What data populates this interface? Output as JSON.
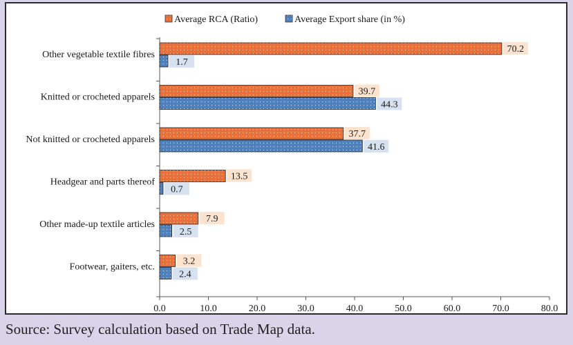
{
  "source_note": "Source: Survey calculation based on Trade Map data.",
  "colors": {
    "rca": "#e8703a",
    "export": "#4f81bd",
    "rca_label_bg": "#fbe3cf",
    "export_label_bg": "#d6e2f0"
  },
  "chart_data": {
    "type": "bar",
    "orientation": "horizontal",
    "title": "",
    "xlabel": "",
    "ylabel": "",
    "xlim": [
      0,
      80
    ],
    "xticks": [
      "0.0",
      "10.0",
      "20.0",
      "30.0",
      "40.0",
      "50.0",
      "60.0",
      "70.0",
      "80.0"
    ],
    "legend_position": "top",
    "categories": [
      "Other vegetable textile fibres",
      "Knitted or crocheted apparels",
      "Not knitted or crocheted apparels",
      "Headgear and parts thereof",
      "Other made-up textile articles",
      "Footwear, gaiters, etc."
    ],
    "series": [
      {
        "name": "Average RCA (Ratio)",
        "values": [
          70.2,
          39.7,
          37.7,
          13.5,
          7.9,
          3.2
        ],
        "labels": [
          "70.2",
          "39.7",
          "37.7",
          "13.5",
          "7.9",
          "3.2"
        ]
      },
      {
        "name": "Average Export share (in %)",
        "values": [
          1.7,
          44.3,
          41.6,
          0.7,
          2.5,
          2.4
        ],
        "labels": [
          "1.7",
          "44.3",
          "41.6",
          "0.7",
          "2.5",
          "2.4"
        ]
      }
    ]
  }
}
